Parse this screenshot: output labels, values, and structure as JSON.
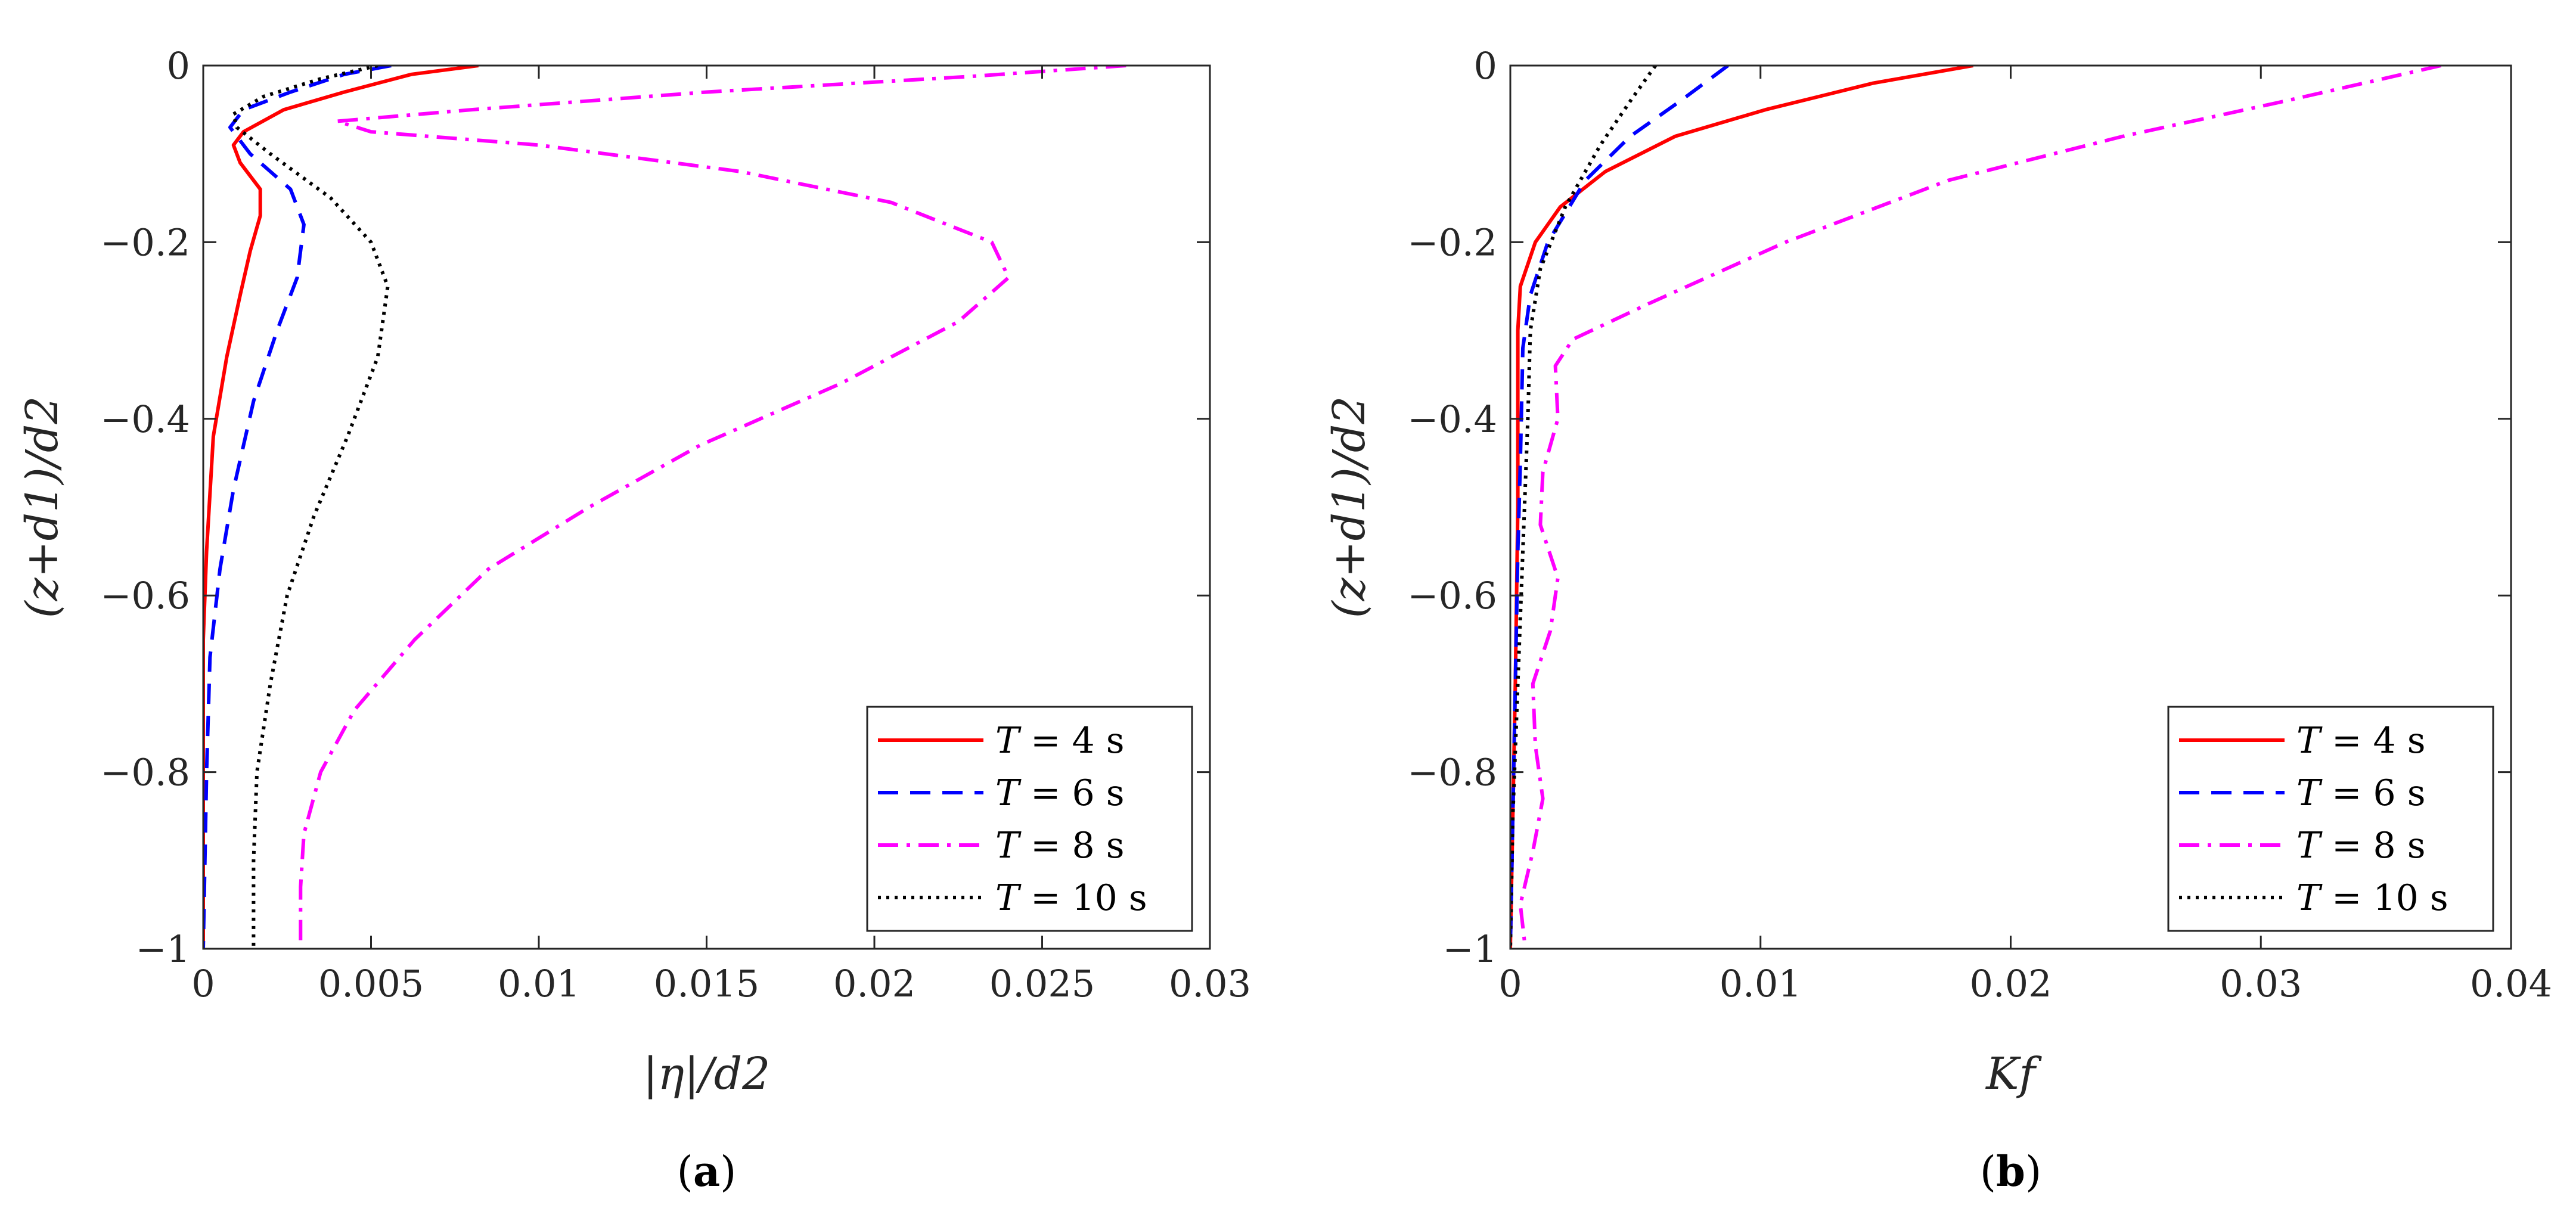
{
  "chart_data": [
    {
      "type": "line",
      "panel_label": "(a)",
      "panel_letter": "a",
      "xlabel": "|η|/d2",
      "ylabel": "(z+d1)/d2",
      "xlim": [
        0,
        0.03
      ],
      "ylim": [
        -1,
        0
      ],
      "xticks": [
        0,
        0.005,
        0.01,
        0.015,
        0.02,
        0.025,
        0.03
      ],
      "xtick_labels": [
        "0",
        "0.005",
        "0.01",
        "0.015",
        "0.02",
        "0.025",
        "0.03"
      ],
      "yticks": [
        0,
        -0.2,
        -0.4,
        -0.6,
        -0.8,
        -1
      ],
      "ytick_labels": [
        "0",
        "−0.2",
        "−0.4",
        "−0.6",
        "−0.8",
        "−1"
      ],
      "legend_location": "bottom-right",
      "series": [
        {
          "name": "T = 4 s",
          "var": "T",
          "eq": " = 4 s",
          "color": "#ff0000",
          "dash": "solid",
          "points": [
            [
              0.0082,
              0
            ],
            [
              0.0062,
              -0.01
            ],
            [
              0.0042,
              -0.03
            ],
            [
              0.0024,
              -0.05
            ],
            [
              0.0012,
              -0.075
            ],
            [
              0.0009,
              -0.09
            ],
            [
              0.0011,
              -0.11
            ],
            [
              0.0017,
              -0.14
            ],
            [
              0.0017,
              -0.17
            ],
            [
              0.0014,
              -0.21
            ],
            [
              0.0011,
              -0.26
            ],
            [
              0.0007,
              -0.33
            ],
            [
              0.0003,
              -0.42
            ],
            [
              0.0001,
              -0.55
            ],
            [
              0,
              -0.65
            ],
            [
              0,
              -1
            ]
          ]
        },
        {
          "name": "T = 6 s",
          "var": "T",
          "eq": " = 6 s",
          "color": "#0000ff",
          "dash": "dashed",
          "points": [
            [
              0.0056,
              0
            ],
            [
              0.0042,
              -0.01
            ],
            [
              0.0026,
              -0.03
            ],
            [
              0.0012,
              -0.05
            ],
            [
              0.0008,
              -0.07
            ],
            [
              0.0014,
              -0.1
            ],
            [
              0.0026,
              -0.14
            ],
            [
              0.003,
              -0.18
            ],
            [
              0.0028,
              -0.24
            ],
            [
              0.0022,
              -0.3
            ],
            [
              0.0015,
              -0.38
            ],
            [
              0.0009,
              -0.48
            ],
            [
              0.0005,
              -0.57
            ],
            [
              0.0002,
              -0.67
            ],
            [
              0.0001,
              -0.8
            ],
            [
              0,
              -1
            ]
          ]
        },
        {
          "name": "T = 8 s",
          "var": "T",
          "eq": " = 8 s",
          "color": "#ff00ff",
          "dash": "dashdot",
          "points": [
            [
              0.0275,
              0
            ],
            [
              0.023,
              -0.012
            ],
            [
              0.015,
              -0.03
            ],
            [
              0.008,
              -0.05
            ],
            [
              0.004,
              -0.063
            ],
            [
              0.005,
              -0.075
            ],
            [
              0.01,
              -0.09
            ],
            [
              0.016,
              -0.12
            ],
            [
              0.0205,
              -0.155
            ],
            [
              0.0235,
              -0.2
            ],
            [
              0.024,
              -0.24
            ],
            [
              0.0225,
              -0.29
            ],
            [
              0.019,
              -0.36
            ],
            [
              0.0148,
              -0.43
            ],
            [
              0.0115,
              -0.5
            ],
            [
              0.0085,
              -0.57
            ],
            [
              0.0063,
              -0.65
            ],
            [
              0.0045,
              -0.73
            ],
            [
              0.0035,
              -0.8
            ],
            [
              0.003,
              -0.87
            ],
            [
              0.0029,
              -0.93
            ],
            [
              0.0029,
              -1
            ]
          ]
        },
        {
          "name": "T = 10 s",
          "var": "T",
          "eq": " = 10 s",
          "color": "#000000",
          "dash": "dotted",
          "points": [
            [
              0.0052,
              0
            ],
            [
              0.0035,
              -0.015
            ],
            [
              0.0018,
              -0.035
            ],
            [
              0.0009,
              -0.055
            ],
            [
              0.001,
              -0.07
            ],
            [
              0.002,
              -0.1
            ],
            [
              0.0038,
              -0.15
            ],
            [
              0.005,
              -0.2
            ],
            [
              0.0055,
              -0.25
            ],
            [
              0.0052,
              -0.33
            ],
            [
              0.0043,
              -0.42
            ],
            [
              0.0033,
              -0.51
            ],
            [
              0.0025,
              -0.6
            ],
            [
              0.002,
              -0.7
            ],
            [
              0.0016,
              -0.8
            ],
            [
              0.0015,
              -0.9
            ],
            [
              0.0015,
              -1
            ]
          ]
        }
      ]
    },
    {
      "type": "line",
      "panel_label": "(b)",
      "panel_letter": "b",
      "xlabel": "Kf",
      "ylabel": "(z+d1)/d2",
      "xlim": [
        0,
        0.04
      ],
      "ylim": [
        -1,
        0
      ],
      "xticks": [
        0,
        0.01,
        0.02,
        0.03,
        0.04
      ],
      "xtick_labels": [
        "0",
        "0.01",
        "0.02",
        "0.03",
        "0.04"
      ],
      "yticks": [
        0,
        -0.2,
        -0.4,
        -0.6,
        -0.8,
        -1
      ],
      "ytick_labels": [
        "0",
        "−0.2",
        "−0.4",
        "−0.6",
        "−0.8",
        "−1"
      ],
      "legend_location": "bottom-right",
      "series": [
        {
          "name": "T = 4 s",
          "var": "T",
          "eq": " = 4 s",
          "color": "#ff0000",
          "dash": "solid",
          "points": [
            [
              0.0185,
              0
            ],
            [
              0.0145,
              -0.02
            ],
            [
              0.0102,
              -0.05
            ],
            [
              0.0066,
              -0.08
            ],
            [
              0.0038,
              -0.12
            ],
            [
              0.002,
              -0.16
            ],
            [
              0.001,
              -0.2
            ],
            [
              0.0004,
              -0.25
            ],
            [
              0.0003,
              -0.3
            ],
            [
              0.0003,
              -0.5
            ],
            [
              0.0002,
              -0.7
            ],
            [
              0.0001,
              -0.85
            ],
            [
              0,
              -1
            ]
          ]
        },
        {
          "name": "T = 6 s",
          "var": "T",
          "eq": " = 6 s",
          "color": "#0000ff",
          "dash": "dashed",
          "points": [
            [
              0.0087,
              0
            ],
            [
              0.0068,
              -0.04
            ],
            [
              0.0048,
              -0.08
            ],
            [
              0.003,
              -0.13
            ],
            [
              0.0015,
              -0.2
            ],
            [
              0.0008,
              -0.26
            ],
            [
              0.0005,
              -0.32
            ],
            [
              0.0004,
              -0.45
            ],
            [
              0.0003,
              -0.55
            ],
            [
              0.0002,
              -0.7
            ],
            [
              0.0001,
              -0.85
            ],
            [
              0,
              -1
            ]
          ]
        },
        {
          "name": "T = 8 s",
          "var": "T",
          "eq": " = 8 s",
          "color": "#ff00ff",
          "dash": "dashdot",
          "points": [
            [
              0.0372,
              0
            ],
            [
              0.031,
              -0.04
            ],
            [
              0.0245,
              -0.08
            ],
            [
              0.0175,
              -0.13
            ],
            [
              0.011,
              -0.2
            ],
            [
              0.0055,
              -0.27
            ],
            [
              0.0025,
              -0.31
            ],
            [
              0.0018,
              -0.34
            ],
            [
              0.0019,
              -0.4
            ],
            [
              0.0013,
              -0.46
            ],
            [
              0.0012,
              -0.52
            ],
            [
              0.0019,
              -0.58
            ],
            [
              0.0016,
              -0.64
            ],
            [
              0.0009,
              -0.7
            ],
            [
              0.001,
              -0.77
            ],
            [
              0.0013,
              -0.83
            ],
            [
              0.0009,
              -0.89
            ],
            [
              0.0004,
              -0.95
            ],
            [
              0.0006,
              -1
            ]
          ]
        },
        {
          "name": "T = 10 s",
          "var": "T",
          "eq": " = 10 s",
          "color": "#000000",
          "dash": "dotted",
          "points": [
            [
              0.0058,
              0
            ],
            [
              0.0048,
              -0.04
            ],
            [
              0.0036,
              -0.09
            ],
            [
              0.0022,
              -0.16
            ],
            [
              0.0012,
              -0.23
            ],
            [
              0.0008,
              -0.3
            ],
            [
              0.0007,
              -0.4
            ],
            [
              0.0005,
              -0.55
            ],
            [
              0.0003,
              -0.7
            ],
            [
              0.0001,
              -0.85
            ],
            [
              0,
              -1
            ]
          ]
        }
      ]
    }
  ]
}
